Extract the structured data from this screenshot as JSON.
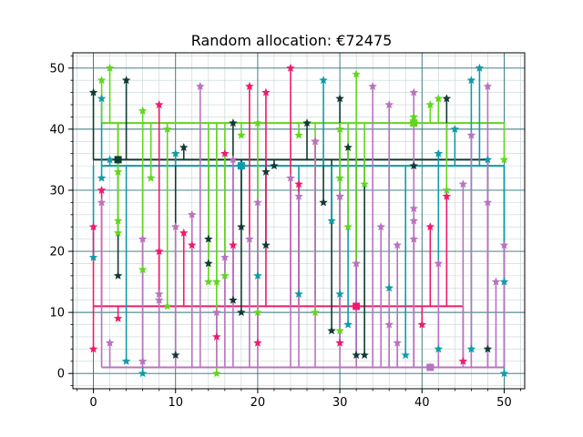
{
  "chart_data": {
    "type": "scatter",
    "title": "Random allocation: €72475",
    "xlabel": "",
    "ylabel": "",
    "xlim": [
      -2.5,
      52.5
    ],
    "ylim": [
      -2.5,
      52.5
    ],
    "xticks": [
      0,
      10,
      20,
      30,
      40,
      50
    ],
    "yticks": [
      0,
      10,
      20,
      30,
      40,
      50
    ],
    "grid": {
      "major": true,
      "minor": true,
      "major_color": "#2f6f7a",
      "minor_color": "#c6d3d8"
    },
    "legend": "none",
    "marker": "star",
    "series": [
      {
        "color": "#103a34",
        "hub": [
          3,
          35
        ],
        "trunk_range": [
          0,
          48
        ],
        "points": [
          [
            0,
            46
          ],
          [
            3,
            16
          ],
          [
            4,
            48
          ],
          [
            10,
            3
          ],
          [
            11,
            37
          ],
          [
            14,
            22
          ],
          [
            14,
            18
          ],
          [
            17,
            41
          ],
          [
            17,
            12
          ],
          [
            18,
            10
          ],
          [
            18,
            24
          ],
          [
            21,
            33
          ],
          [
            21,
            21
          ],
          [
            22,
            34
          ],
          [
            26,
            41
          ],
          [
            28,
            28
          ],
          [
            29,
            7
          ],
          [
            30,
            45
          ],
          [
            31,
            37
          ],
          [
            32,
            3
          ],
          [
            33,
            3
          ],
          [
            39,
            34
          ],
          [
            43,
            45
          ],
          [
            48,
            4
          ]
        ]
      },
      {
        "color": "#0f9ca7",
        "hub": [
          18,
          34
        ],
        "trunk_range": [
          1,
          50
        ],
        "points": [
          [
            0,
            19
          ],
          [
            1,
            32
          ],
          [
            1,
            45
          ],
          [
            2,
            35
          ],
          [
            4,
            2
          ],
          [
            6,
            0
          ],
          [
            10,
            36
          ],
          [
            18,
            34
          ],
          [
            20,
            16
          ],
          [
            25,
            13
          ],
          [
            28,
            48
          ],
          [
            29,
            25
          ],
          [
            30,
            13
          ],
          [
            31,
            8
          ],
          [
            36,
            14
          ],
          [
            38,
            3
          ],
          [
            42,
            4
          ],
          [
            42,
            36
          ],
          [
            44,
            40
          ],
          [
            46,
            4
          ],
          [
            46,
            48
          ],
          [
            47,
            50
          ],
          [
            48,
            35
          ],
          [
            50,
            15
          ],
          [
            50,
            0
          ]
        ]
      },
      {
        "color": "#f01a6d",
        "hub": [
          32,
          11
        ],
        "trunk_range": [
          0,
          45
        ],
        "points": [
          [
            0,
            24
          ],
          [
            0,
            4
          ],
          [
            1,
            30
          ],
          [
            3,
            9
          ],
          [
            8,
            44
          ],
          [
            8,
            20
          ],
          [
            11,
            23
          ],
          [
            12,
            21
          ],
          [
            15,
            6
          ],
          [
            16,
            36
          ],
          [
            17,
            21
          ],
          [
            19,
            47
          ],
          [
            20,
            5
          ],
          [
            21,
            46
          ],
          [
            24,
            50
          ],
          [
            25,
            31
          ],
          [
            27,
            38
          ],
          [
            30,
            29
          ],
          [
            30,
            5
          ],
          [
            40,
            8
          ],
          [
            41,
            24
          ],
          [
            43,
            29
          ],
          [
            45,
            2
          ]
        ]
      },
      {
        "color": "#61d61f",
        "hub": [
          39,
          41
        ],
        "trunk_range": [
          1,
          50
        ],
        "points": [
          [
            1,
            48
          ],
          [
            2,
            50
          ],
          [
            3,
            33
          ],
          [
            3,
            25
          ],
          [
            3,
            23
          ],
          [
            6,
            43
          ],
          [
            6,
            17
          ],
          [
            7,
            32
          ],
          [
            9,
            40
          ],
          [
            9,
            11
          ],
          [
            14,
            15
          ],
          [
            15,
            15
          ],
          [
            15,
            0
          ],
          [
            16,
            16
          ],
          [
            18,
            39
          ],
          [
            20,
            41
          ],
          [
            20,
            10
          ],
          [
            25,
            39
          ],
          [
            27,
            10
          ],
          [
            30,
            40
          ],
          [
            30,
            32
          ],
          [
            30,
            7
          ],
          [
            31,
            24
          ],
          [
            32,
            49
          ],
          [
            32,
            18
          ],
          [
            33,
            31
          ],
          [
            39,
            42
          ],
          [
            39,
            41
          ],
          [
            41,
            44
          ],
          [
            42,
            45
          ],
          [
            43,
            30
          ],
          [
            50,
            35
          ]
        ]
      },
      {
        "color": "#b873be",
        "hub": [
          41,
          1
        ],
        "trunk_range": [
          1,
          50
        ],
        "points": [
          [
            1,
            28
          ],
          [
            2,
            5
          ],
          [
            6,
            22
          ],
          [
            6,
            2
          ],
          [
            8,
            13
          ],
          [
            8,
            12
          ],
          [
            10,
            24
          ],
          [
            12,
            26
          ],
          [
            13,
            47
          ],
          [
            15,
            10
          ],
          [
            16,
            19
          ],
          [
            17,
            35
          ],
          [
            19,
            22
          ],
          [
            20,
            28
          ],
          [
            24,
            32
          ],
          [
            25,
            29
          ],
          [
            27,
            38
          ],
          [
            30,
            29
          ],
          [
            32,
            18
          ],
          [
            34,
            47
          ],
          [
            35,
            24
          ],
          [
            36,
            8
          ],
          [
            36,
            44
          ],
          [
            37,
            21
          ],
          [
            37,
            5
          ],
          [
            39,
            46
          ],
          [
            39,
            27
          ],
          [
            39,
            25
          ],
          [
            39,
            22
          ],
          [
            41,
            1
          ],
          [
            42,
            18
          ],
          [
            45,
            31
          ],
          [
            46,
            39
          ],
          [
            48,
            47
          ],
          [
            48,
            28
          ],
          [
            49,
            15
          ],
          [
            50,
            21
          ]
        ]
      }
    ]
  }
}
